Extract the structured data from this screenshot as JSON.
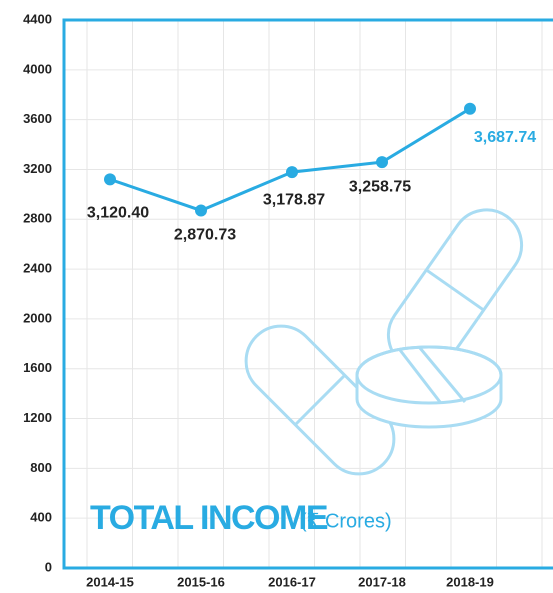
{
  "chart_data": {
    "type": "line",
    "title": "TOTAL INCOME",
    "subtitle": "(₹ Crores)",
    "categories": [
      "2014-15",
      "2015-16",
      "2016-17",
      "2017-18",
      "2018-19"
    ],
    "category_label_colors": [
      "#222222",
      "#222222",
      "#222222",
      "#222222",
      "#29abe2"
    ],
    "values": [
      3120.4,
      2870.73,
      3178.87,
      3258.75,
      3687.74
    ],
    "value_labels": [
      "3,120.40",
      "2,870.73",
      "3,178.87",
      "3,258.75",
      "3,687.74"
    ],
    "value_label_colors": [
      "#222222",
      "#222222",
      "#222222",
      "#222222",
      "#29abe2"
    ],
    "color": "#29abe2",
    "ylim": [
      0,
      4400
    ],
    "yticks": [
      0,
      400,
      800,
      1200,
      1600,
      2000,
      2400,
      2800,
      3200,
      3600,
      4000,
      4400
    ],
    "grid": true
  }
}
